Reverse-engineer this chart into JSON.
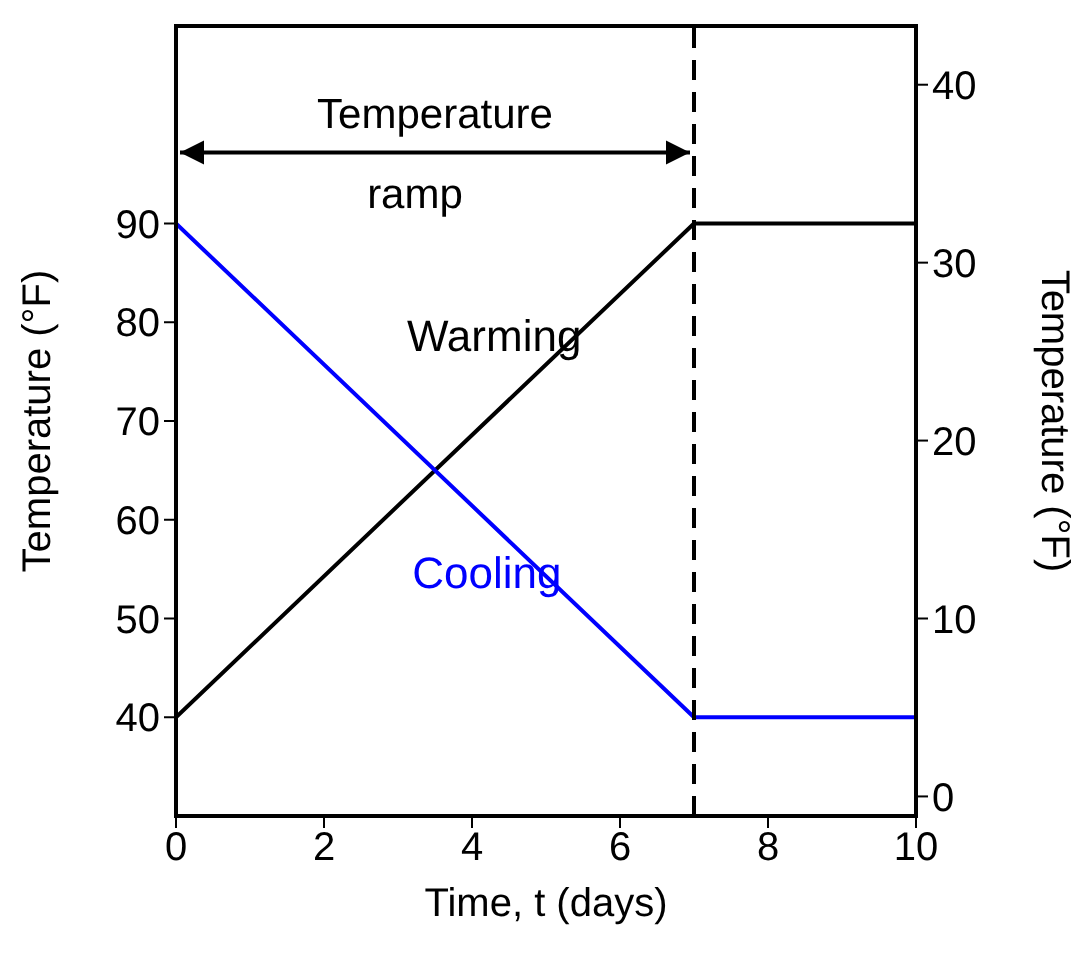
{
  "chart_data": {
    "type": "line",
    "xlabel": "Time, t (days)",
    "ylabel": "Temperature (°F)",
    "y2label": "Temperature (°F)",
    "x": [
      0,
      7,
      10
    ],
    "series": [
      {
        "name": "Warming",
        "color": "#000000",
        "values": [
          40,
          90,
          90
        ]
      },
      {
        "name": "Cooling",
        "color": "#0000ff",
        "values": [
          90,
          40,
          40
        ]
      }
    ],
    "xlim": [
      0,
      10
    ],
    "xticks": [
      0,
      2,
      4,
      6,
      8,
      10
    ],
    "ylim": [
      30,
      110
    ],
    "yticks": [
      40,
      50,
      60,
      70,
      80,
      90
    ],
    "y2lim": [
      -1.1,
      43.3
    ],
    "y2ticks": [
      0,
      10,
      20,
      30,
      40
    ],
    "ref_lines": [
      {
        "axis": "x",
        "value": 7,
        "line_style": "dashed",
        "color": "#000000"
      }
    ],
    "annotations": [
      "Temperature ramp"
    ],
    "legend": false,
    "marker": "none",
    "line_style": "solid"
  }
}
